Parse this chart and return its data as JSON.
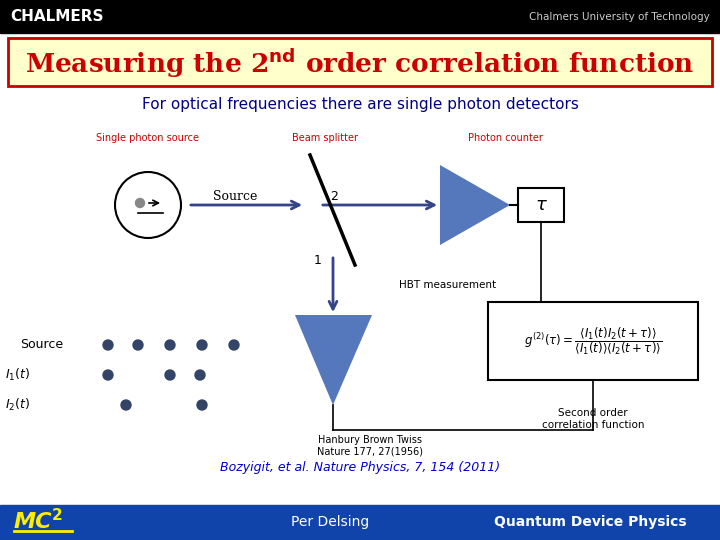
{
  "bg_color": "#ffffff",
  "header_bg": "#000000",
  "header_chalmers_color": "#ffffff",
  "header_chalmers_text": "CHALMERS",
  "header_right_text": "Chalmers University of Technology",
  "header_right_color": "#cccccc",
  "title_box_bg": "#ffffcc",
  "title_box_edge": "#cc0000",
  "title_color": "#cc0000",
  "subtitle_text": "For optical frequencies there are single photon detectors",
  "subtitle_color": "#000080",
  "label_single_photon": "Single photon source",
  "label_beam_splitter": "Beam splitter",
  "label_photon_counter": "Photon counter",
  "label_source": "Source",
  "label_hbt": "HBT measurement",
  "label_hanbury": "Hanbury Brown Twiss\nNature 177, 27(1956)",
  "label_second_order": "Second order\ncorrelation function",
  "label_bozyigit": "Bozyigit, et al. Nature Physics, 7, 154 (2011)",
  "label_per_delsing": "Per Delsing",
  "label_qdp": "Quantum Device Physics",
  "red_label_color": "#cc0000",
  "dark_blue": "#0000cc",
  "blue_triangle": "#5577bb",
  "arrow_blue": "#334488",
  "dot_color": "#334466",
  "footer_bg": "#1144aa",
  "footer_text_color": "#ffffff",
  "footer_yellow": "#ffee00"
}
